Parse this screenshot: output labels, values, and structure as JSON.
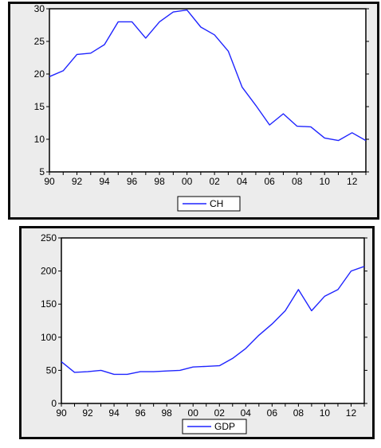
{
  "chart_data": [
    {
      "type": "line",
      "x": [
        "1990",
        "1991",
        "1992",
        "1993",
        "1994",
        "1995",
        "1996",
        "1997",
        "1998",
        "1999",
        "2000",
        "2001",
        "2002",
        "2003",
        "2004",
        "2005",
        "2006",
        "2007",
        "2008",
        "2009",
        "2010",
        "2011",
        "2012",
        "2013"
      ],
      "series": [
        {
          "name": "CH",
          "values": [
            19.6,
            20.5,
            23.0,
            23.2,
            24.5,
            28.0,
            28.0,
            25.5,
            28.0,
            29.5,
            29.8,
            27.2,
            26.0,
            23.5,
            18.0,
            15.2,
            12.2,
            13.9,
            12.0,
            11.9,
            10.2,
            9.8,
            11.0,
            9.8
          ]
        }
      ],
      "xticks": [
        "90",
        "92",
        "94",
        "96",
        "98",
        "00",
        "02",
        "04",
        "06",
        "08",
        "10",
        "12"
      ],
      "yticks": [
        "5",
        "10",
        "15",
        "20",
        "25",
        "30"
      ],
      "ylim": [
        5,
        30
      ],
      "grid": false,
      "legend_position": "bottom-center",
      "colors": {
        "series": "#1f24ff",
        "frame": "#0a0a0a",
        "panel": "#ececec"
      }
    },
    {
      "type": "line",
      "x": [
        "1990",
        "1991",
        "1992",
        "1993",
        "1994",
        "1995",
        "1996",
        "1997",
        "1998",
        "1999",
        "2000",
        "2001",
        "2002",
        "2003",
        "2004",
        "2005",
        "2006",
        "2007",
        "2008",
        "2009",
        "2010",
        "2011",
        "2012",
        "2013"
      ],
      "series": [
        {
          "name": "GDP",
          "values": [
            63,
            47,
            48,
            50,
            44,
            44,
            48,
            48,
            49,
            50,
            55,
            56,
            57,
            68,
            83,
            103,
            120,
            140,
            172,
            140,
            162,
            172,
            200,
            207
          ]
        }
      ],
      "xticks": [
        "90",
        "92",
        "94",
        "96",
        "98",
        "00",
        "02",
        "04",
        "06",
        "08",
        "10",
        "12"
      ],
      "yticks": [
        "0",
        "50",
        "100",
        "150",
        "200",
        "250"
      ],
      "ylim": [
        0,
        250
      ],
      "grid": false,
      "legend_position": "bottom-center",
      "colors": {
        "series": "#1f24ff",
        "frame": "#0a0a0a",
        "panel": "#ececec"
      }
    }
  ]
}
